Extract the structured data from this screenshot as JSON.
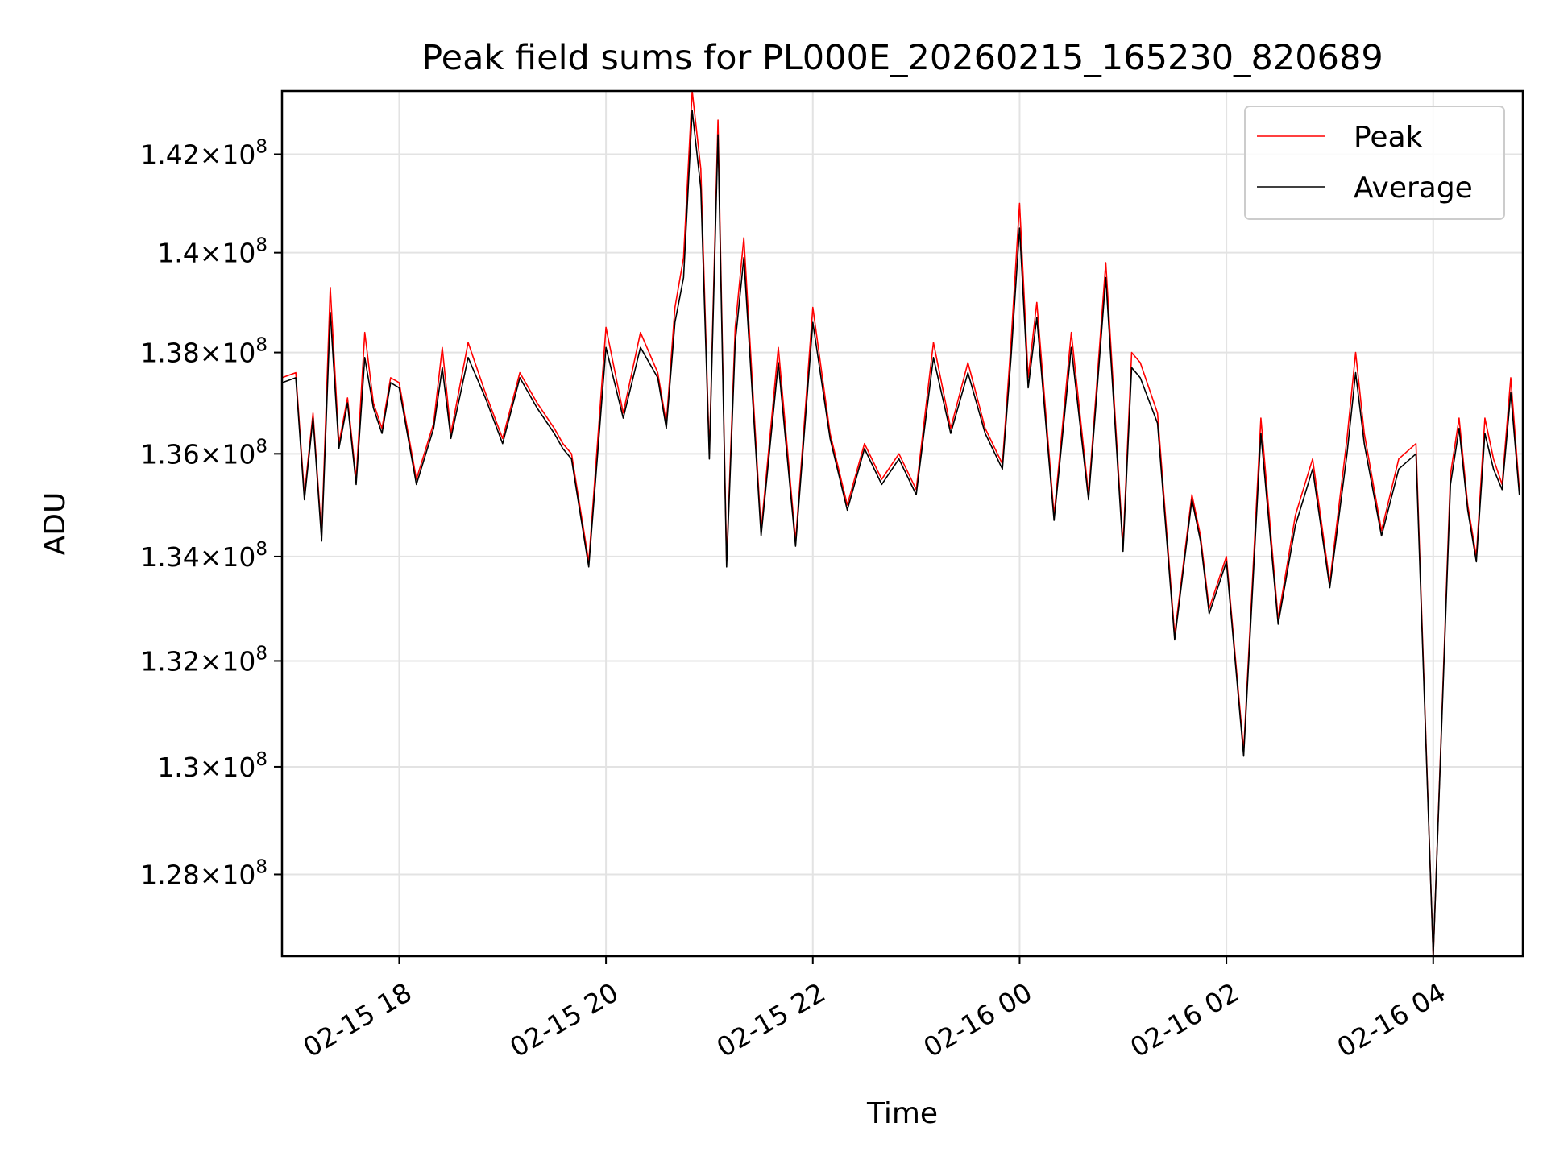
{
  "chart_data": {
    "type": "line",
    "title": "Peak field sums for PL000E_20260215_165230_820689",
    "xlabel": "Time",
    "ylabel": "ADU",
    "y_scale": "log",
    "xlim": [
      "2026-02-15 16:52",
      "2026-02-16 04:52"
    ],
    "ylim": [
      126500000,
      143300000
    ],
    "x_ticks": [
      {
        "t": "2026-02-15 18:00",
        "label": "02-15 18"
      },
      {
        "t": "2026-02-15 20:00",
        "label": "02-15 20"
      },
      {
        "t": "2026-02-15 22:00",
        "label": "02-15 22"
      },
      {
        "t": "2026-02-16 00:00",
        "label": "02-16 00"
      },
      {
        "t": "2026-02-16 02:00",
        "label": "02-16 02"
      },
      {
        "t": "2026-02-16 04:00",
        "label": "02-16 04"
      }
    ],
    "y_ticks": [
      {
        "value": 128000000,
        "mantissa": "1.28",
        "exponent": "8"
      },
      {
        "value": 130000000,
        "mantissa": "1.3",
        "exponent": "8"
      },
      {
        "value": 132000000,
        "mantissa": "1.32",
        "exponent": "8"
      },
      {
        "value": 134000000,
        "mantissa": "1.34",
        "exponent": "8"
      },
      {
        "value": 136000000,
        "mantissa": "1.36",
        "exponent": "8"
      },
      {
        "value": 138000000,
        "mantissa": "1.38",
        "exponent": "8"
      },
      {
        "value": 140000000,
        "mantissa": "1.4",
        "exponent": "8"
      },
      {
        "value": 142000000,
        "mantissa": "1.42",
        "exponent": "8"
      }
    ],
    "grid": true,
    "legend_position": "top-right",
    "series": [
      {
        "name": "Peak",
        "color": "#ff0000",
        "x": [
          "2026-02-15 16:52",
          "2026-02-15 17:00",
          "2026-02-15 17:05",
          "2026-02-15 17:10",
          "2026-02-15 17:15",
          "2026-02-15 17:20",
          "2026-02-15 17:25",
          "2026-02-15 17:30",
          "2026-02-15 17:35",
          "2026-02-15 17:40",
          "2026-02-15 17:45",
          "2026-02-15 17:50",
          "2026-02-15 17:55",
          "2026-02-15 18:00",
          "2026-02-15 18:10",
          "2026-02-15 18:20",
          "2026-02-15 18:25",
          "2026-02-15 18:30",
          "2026-02-15 18:40",
          "2026-02-15 18:50",
          "2026-02-15 19:00",
          "2026-02-15 19:10",
          "2026-02-15 19:20",
          "2026-02-15 19:30",
          "2026-02-15 19:35",
          "2026-02-15 19:40",
          "2026-02-15 19:50",
          "2026-02-15 20:00",
          "2026-02-15 20:10",
          "2026-02-15 20:20",
          "2026-02-15 20:30",
          "2026-02-15 20:35",
          "2026-02-15 20:40",
          "2026-02-15 20:45",
          "2026-02-15 20:50",
          "2026-02-15 20:55",
          "2026-02-15 21:00",
          "2026-02-15 21:05",
          "2026-02-15 21:10",
          "2026-02-15 21:15",
          "2026-02-15 21:20",
          "2026-02-15 21:30",
          "2026-02-15 21:40",
          "2026-02-15 21:50",
          "2026-02-15 22:00",
          "2026-02-15 22:10",
          "2026-02-15 22:20",
          "2026-02-15 22:30",
          "2026-02-15 22:40",
          "2026-02-15 22:50",
          "2026-02-15 23:00",
          "2026-02-15 23:10",
          "2026-02-15 23:20",
          "2026-02-15 23:30",
          "2026-02-15 23:40",
          "2026-02-15 23:50",
          "2026-02-15 23:55",
          "2026-02-16 00:00",
          "2026-02-16 00:05",
          "2026-02-16 00:10",
          "2026-02-16 00:20",
          "2026-02-16 00:30",
          "2026-02-16 00:40",
          "2026-02-16 00:50",
          "2026-02-16 01:00",
          "2026-02-16 01:05",
          "2026-02-16 01:10",
          "2026-02-16 01:20",
          "2026-02-16 01:30",
          "2026-02-16 01:40",
          "2026-02-16 01:45",
          "2026-02-16 01:50",
          "2026-02-16 02:00",
          "2026-02-16 02:10",
          "2026-02-16 02:20",
          "2026-02-16 02:30",
          "2026-02-16 02:40",
          "2026-02-16 02:50",
          "2026-02-16 03:00",
          "2026-02-16 03:10",
          "2026-02-16 03:15",
          "2026-02-16 03:20",
          "2026-02-16 03:30",
          "2026-02-16 03:40",
          "2026-02-16 03:50",
          "2026-02-16 04:00",
          "2026-02-16 04:10",
          "2026-02-16 04:15",
          "2026-02-16 04:20",
          "2026-02-16 04:25",
          "2026-02-16 04:30",
          "2026-02-16 04:35",
          "2026-02-16 04:40",
          "2026-02-16 04:45",
          "2026-02-16 04:50"
        ],
        "values": [
          137500000,
          137600000,
          135200000,
          136800000,
          134400000,
          139300000,
          136200000,
          137100000,
          135500000,
          138400000,
          137000000,
          136500000,
          137500000,
          137400000,
          135500000,
          136600000,
          138100000,
          136400000,
          138200000,
          137200000,
          136300000,
          137600000,
          137000000,
          136500000,
          136200000,
          136000000,
          133900000,
          138500000,
          136800000,
          138400000,
          137600000,
          136600000,
          138900000,
          139900000,
          143300000,
          141700000,
          136000000,
          142700000,
          133900000,
          138500000,
          140300000,
          134500000,
          138100000,
          134300000,
          138900000,
          136400000,
          135000000,
          136200000,
          135500000,
          136000000,
          135300000,
          138200000,
          136500000,
          137800000,
          136500000,
          135800000,
          138200000,
          141000000,
          137500000,
          139000000,
          134800000,
          138400000,
          135200000,
          139800000,
          134200000,
          138000000,
          137800000,
          136800000,
          132500000,
          135200000,
          134400000,
          133000000,
          134000000,
          130300000,
          136700000,
          132800000,
          134800000,
          135900000,
          133500000,
          136300000,
          138000000,
          136400000,
          134500000,
          135900000,
          136200000,
          126500000,
          135600000,
          136700000,
          135000000,
          134000000,
          136700000,
          135900000,
          135400000,
          137500000,
          135300000
        ]
      },
      {
        "name": "Average",
        "color": "#000000",
        "x": [
          "2026-02-15 16:52",
          "2026-02-15 17:00",
          "2026-02-15 17:05",
          "2026-02-15 17:10",
          "2026-02-15 17:15",
          "2026-02-15 17:20",
          "2026-02-15 17:25",
          "2026-02-15 17:30",
          "2026-02-15 17:35",
          "2026-02-15 17:40",
          "2026-02-15 17:45",
          "2026-02-15 17:50",
          "2026-02-15 17:55",
          "2026-02-15 18:00",
          "2026-02-15 18:10",
          "2026-02-15 18:20",
          "2026-02-15 18:25",
          "2026-02-15 18:30",
          "2026-02-15 18:40",
          "2026-02-15 18:50",
          "2026-02-15 19:00",
          "2026-02-15 19:10",
          "2026-02-15 19:20",
          "2026-02-15 19:30",
          "2026-02-15 19:35",
          "2026-02-15 19:40",
          "2026-02-15 19:50",
          "2026-02-15 20:00",
          "2026-02-15 20:10",
          "2026-02-15 20:20",
          "2026-02-15 20:30",
          "2026-02-15 20:35",
          "2026-02-15 20:40",
          "2026-02-15 20:45",
          "2026-02-15 20:50",
          "2026-02-15 20:55",
          "2026-02-15 21:00",
          "2026-02-15 21:05",
          "2026-02-15 21:10",
          "2026-02-15 21:15",
          "2026-02-15 21:20",
          "2026-02-15 21:30",
          "2026-02-15 21:40",
          "2026-02-15 21:50",
          "2026-02-15 22:00",
          "2026-02-15 22:10",
          "2026-02-15 22:20",
          "2026-02-15 22:30",
          "2026-02-15 22:40",
          "2026-02-15 22:50",
          "2026-02-15 23:00",
          "2026-02-15 23:10",
          "2026-02-15 23:20",
          "2026-02-15 23:30",
          "2026-02-15 23:40",
          "2026-02-15 23:50",
          "2026-02-15 23:55",
          "2026-02-16 00:00",
          "2026-02-16 00:05",
          "2026-02-16 00:10",
          "2026-02-16 00:20",
          "2026-02-16 00:30",
          "2026-02-16 00:40",
          "2026-02-16 00:50",
          "2026-02-16 01:00",
          "2026-02-16 01:05",
          "2026-02-16 01:10",
          "2026-02-16 01:20",
          "2026-02-16 01:30",
          "2026-02-16 01:40",
          "2026-02-16 01:45",
          "2026-02-16 01:50",
          "2026-02-16 02:00",
          "2026-02-16 02:10",
          "2026-02-16 02:20",
          "2026-02-16 02:30",
          "2026-02-16 02:40",
          "2026-02-16 02:50",
          "2026-02-16 03:00",
          "2026-02-16 03:10",
          "2026-02-16 03:15",
          "2026-02-16 03:20",
          "2026-02-16 03:30",
          "2026-02-16 03:40",
          "2026-02-16 03:50",
          "2026-02-16 04:00",
          "2026-02-16 04:10",
          "2026-02-16 04:15",
          "2026-02-16 04:20",
          "2026-02-16 04:25",
          "2026-02-16 04:30",
          "2026-02-16 04:35",
          "2026-02-16 04:40",
          "2026-02-16 04:45",
          "2026-02-16 04:50"
        ],
        "values": [
          137400000,
          137500000,
          135100000,
          136700000,
          134300000,
          138800000,
          136100000,
          137000000,
          135400000,
          137900000,
          136900000,
          136400000,
          137400000,
          137300000,
          135400000,
          136500000,
          137700000,
          136300000,
          137900000,
          137100000,
          136200000,
          137500000,
          136900000,
          136400000,
          136100000,
          135900000,
          133800000,
          138100000,
          136700000,
          138100000,
          137500000,
          136500000,
          138600000,
          139500000,
          142900000,
          141300000,
          135900000,
          142400000,
          133800000,
          138200000,
          139900000,
          134400000,
          137800000,
          134200000,
          138600000,
          136300000,
          134900000,
          136100000,
          135400000,
          135900000,
          135200000,
          137900000,
          136400000,
          137600000,
          136400000,
          135700000,
          137900000,
          140500000,
          137300000,
          138700000,
          134700000,
          138100000,
          135100000,
          139500000,
          134100000,
          137700000,
          137500000,
          136600000,
          132400000,
          135100000,
          134300000,
          132900000,
          133900000,
          130200000,
          136400000,
          132700000,
          134600000,
          135700000,
          133400000,
          136000000,
          137600000,
          136200000,
          134400000,
          135700000,
          136000000,
          126500000,
          135400000,
          136500000,
          134900000,
          133900000,
          136400000,
          135700000,
          135300000,
          137200000,
          135200000
        ]
      }
    ]
  }
}
